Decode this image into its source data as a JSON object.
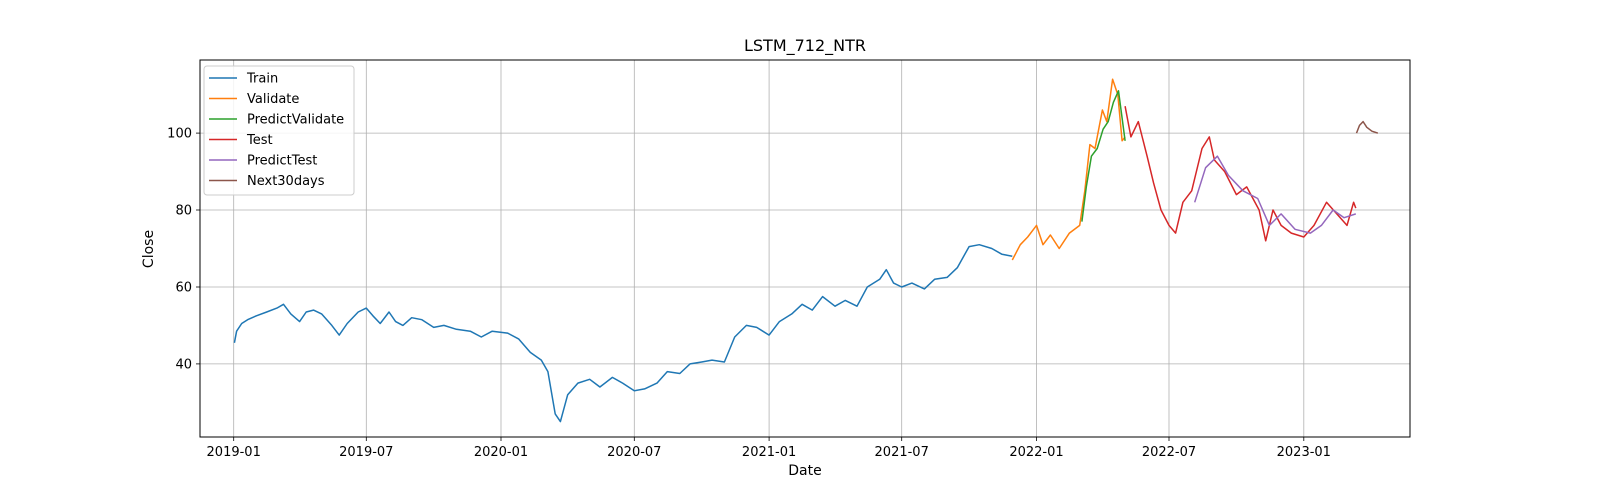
{
  "chart_data": {
    "type": "line",
    "title": "LSTM_712_NTR",
    "xlabel": "Date",
    "ylabel": "Close",
    "xlim": [
      "2018-11-16",
      "2023-05-26"
    ],
    "ylim": [
      21,
      119
    ],
    "grid": true,
    "legend_position": "top-left",
    "x_ticks": [
      "2019-01",
      "2019-07",
      "2020-01",
      "2020-07",
      "2021-01",
      "2021-07",
      "2022-01",
      "2022-07",
      "2023-01"
    ],
    "y_ticks": [
      40,
      60,
      80,
      100
    ],
    "series": [
      {
        "name": "Train",
        "color": "#1f77b4",
        "points": [
          [
            "2019-01-02",
            45.5
          ],
          [
            "2019-01-05",
            48.5
          ],
          [
            "2019-01-12",
            50.5
          ],
          [
            "2019-01-20",
            51.5
          ],
          [
            "2019-02-01",
            52.5
          ],
          [
            "2019-02-15",
            53.5
          ],
          [
            "2019-03-01",
            54.5
          ],
          [
            "2019-03-10",
            55.5
          ],
          [
            "2019-03-20",
            53
          ],
          [
            "2019-04-01",
            51
          ],
          [
            "2019-04-10",
            53.5
          ],
          [
            "2019-04-20",
            54
          ],
          [
            "2019-05-01",
            53
          ],
          [
            "2019-05-15",
            50
          ],
          [
            "2019-05-25",
            47.5
          ],
          [
            "2019-06-05",
            50.5
          ],
          [
            "2019-06-20",
            53.5
          ],
          [
            "2019-07-01",
            54.5
          ],
          [
            "2019-07-10",
            52.5
          ],
          [
            "2019-07-20",
            50.5
          ],
          [
            "2019-08-01",
            53.5
          ],
          [
            "2019-08-10",
            51
          ],
          [
            "2019-08-20",
            50
          ],
          [
            "2019-09-01",
            52
          ],
          [
            "2019-09-15",
            51.5
          ],
          [
            "2019-10-01",
            49.5
          ],
          [
            "2019-10-15",
            50
          ],
          [
            "2019-11-01",
            49
          ],
          [
            "2019-11-20",
            48.5
          ],
          [
            "2019-12-05",
            47
          ],
          [
            "2019-12-20",
            48.5
          ],
          [
            "2020-01-10",
            48
          ],
          [
            "2020-01-25",
            46.5
          ],
          [
            "2020-02-10",
            43
          ],
          [
            "2020-02-25",
            41
          ],
          [
            "2020-03-05",
            38
          ],
          [
            "2020-03-15",
            27
          ],
          [
            "2020-03-22",
            25
          ],
          [
            "2020-04-01",
            32
          ],
          [
            "2020-04-15",
            35
          ],
          [
            "2020-05-01",
            36
          ],
          [
            "2020-05-15",
            34
          ],
          [
            "2020-06-01",
            36.5
          ],
          [
            "2020-06-15",
            35
          ],
          [
            "2020-07-01",
            33
          ],
          [
            "2020-07-15",
            33.5
          ],
          [
            "2020-08-01",
            35
          ],
          [
            "2020-08-15",
            38
          ],
          [
            "2020-09-01",
            37.5
          ],
          [
            "2020-09-15",
            40
          ],
          [
            "2020-10-01",
            40.5
          ],
          [
            "2020-10-15",
            41
          ],
          [
            "2020-11-01",
            40.5
          ],
          [
            "2020-11-15",
            47
          ],
          [
            "2020-12-01",
            50
          ],
          [
            "2020-12-15",
            49.5
          ],
          [
            "2021-01-01",
            47.5
          ],
          [
            "2021-01-15",
            51
          ],
          [
            "2021-02-01",
            53
          ],
          [
            "2021-02-15",
            55.5
          ],
          [
            "2021-03-01",
            54
          ],
          [
            "2021-03-15",
            57.5
          ],
          [
            "2021-04-01",
            55
          ],
          [
            "2021-04-15",
            56.5
          ],
          [
            "2021-05-01",
            55
          ],
          [
            "2021-05-15",
            60
          ],
          [
            "2021-06-01",
            62
          ],
          [
            "2021-06-10",
            64.5
          ],
          [
            "2021-06-20",
            61
          ],
          [
            "2021-07-01",
            60
          ],
          [
            "2021-07-15",
            61
          ],
          [
            "2021-08-01",
            59.5
          ],
          [
            "2021-08-15",
            62
          ],
          [
            "2021-09-01",
            62.5
          ],
          [
            "2021-09-15",
            65
          ],
          [
            "2021-10-01",
            70.5
          ],
          [
            "2021-10-15",
            71
          ],
          [
            "2021-11-01",
            70
          ],
          [
            "2021-11-15",
            68.5
          ],
          [
            "2021-11-29",
            68
          ]
        ]
      },
      {
        "name": "Validate",
        "color": "#ff7f0e",
        "points": [
          [
            "2021-11-29",
            67
          ],
          [
            "2021-12-10",
            71
          ],
          [
            "2021-12-20",
            73
          ],
          [
            "2022-01-01",
            76
          ],
          [
            "2022-01-10",
            71
          ],
          [
            "2022-01-20",
            73.5
          ],
          [
            "2022-02-01",
            70
          ],
          [
            "2022-02-15",
            74
          ],
          [
            "2022-03-01",
            76
          ],
          [
            "2022-03-08",
            85
          ],
          [
            "2022-03-15",
            97
          ],
          [
            "2022-03-22",
            96
          ],
          [
            "2022-04-01",
            106
          ],
          [
            "2022-04-07",
            103
          ],
          [
            "2022-04-15",
            114
          ],
          [
            "2022-04-22",
            110
          ],
          [
            "2022-04-28",
            98
          ],
          [
            "2022-05-02",
            99
          ]
        ]
      },
      {
        "name": "PredictValidate",
        "color": "#2ca02c",
        "points": [
          [
            "2022-03-04",
            77
          ],
          [
            "2022-03-10",
            86
          ],
          [
            "2022-03-17",
            94
          ],
          [
            "2022-03-25",
            96
          ],
          [
            "2022-04-02",
            101
          ],
          [
            "2022-04-09",
            103
          ],
          [
            "2022-04-16",
            108
          ],
          [
            "2022-04-23",
            111
          ],
          [
            "2022-05-02",
            98
          ]
        ]
      },
      {
        "name": "Test",
        "color": "#d62728",
        "points": [
          [
            "2022-05-02",
            107
          ],
          [
            "2022-05-10",
            99
          ],
          [
            "2022-05-20",
            103
          ],
          [
            "2022-06-01",
            94
          ],
          [
            "2022-06-10",
            87
          ],
          [
            "2022-06-20",
            80
          ],
          [
            "2022-07-01",
            76
          ],
          [
            "2022-07-10",
            74
          ],
          [
            "2022-07-20",
            82
          ],
          [
            "2022-08-01",
            85
          ],
          [
            "2022-08-15",
            96
          ],
          [
            "2022-08-25",
            99
          ],
          [
            "2022-09-01",
            93
          ],
          [
            "2022-09-15",
            90
          ],
          [
            "2022-10-01",
            84
          ],
          [
            "2022-10-15",
            86
          ],
          [
            "2022-11-01",
            80
          ],
          [
            "2022-11-10",
            72
          ],
          [
            "2022-11-20",
            80
          ],
          [
            "2022-12-01",
            76
          ],
          [
            "2022-12-15",
            74
          ],
          [
            "2023-01-01",
            73
          ],
          [
            "2023-01-15",
            76
          ],
          [
            "2023-02-01",
            82
          ],
          [
            "2023-02-15",
            79
          ],
          [
            "2023-03-01",
            76
          ],
          [
            "2023-03-10",
            82
          ],
          [
            "2023-03-13",
            80.5
          ]
        ]
      },
      {
        "name": "PredictTest",
        "color": "#9467bd",
        "points": [
          [
            "2022-08-05",
            82
          ],
          [
            "2022-08-20",
            91
          ],
          [
            "2022-09-05",
            94
          ],
          [
            "2022-09-20",
            89
          ],
          [
            "2022-10-10",
            85
          ],
          [
            "2022-10-30",
            83
          ],
          [
            "2022-11-15",
            76
          ],
          [
            "2022-12-01",
            79
          ],
          [
            "2022-12-20",
            75
          ],
          [
            "2023-01-10",
            74
          ],
          [
            "2023-01-25",
            76
          ],
          [
            "2023-02-10",
            80
          ],
          [
            "2023-02-25",
            78
          ],
          [
            "2023-03-13",
            79
          ]
        ]
      },
      {
        "name": "Next30days",
        "color": "#8c564b",
        "points": [
          [
            "2023-03-14",
            100
          ],
          [
            "2023-03-18",
            102
          ],
          [
            "2023-03-23",
            103
          ],
          [
            "2023-03-28",
            101.5
          ],
          [
            "2023-04-04",
            100.5
          ],
          [
            "2023-04-12",
            100
          ]
        ]
      }
    ]
  }
}
